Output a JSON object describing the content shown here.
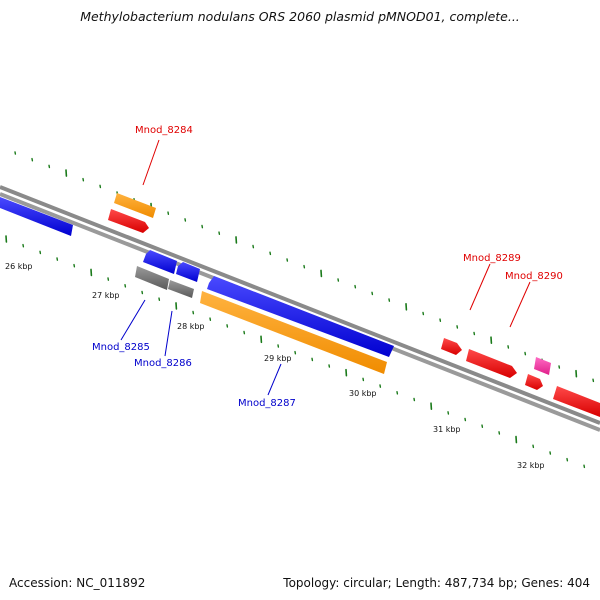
{
  "title": "Methylobacterium nodulans ORS 2060 plasmid pMNOD01, complete...",
  "footer": {
    "accession": "Accession: NC_011892",
    "summary": "Topology: circular; Length: 487,734 bp; Genes: 404"
  },
  "colors": {
    "backbone": "#8c8c8c",
    "tick": "#1a7a1a",
    "forward_gene": "#ff0000",
    "forward_label": "#e00000",
    "reverse_gene": "#0000ee",
    "reverse_label": "#0000cc",
    "orange": "#ff9900",
    "gray": "#777777",
    "pink": "#ff33aa"
  },
  "scale_labels": [
    "26 kbp",
    "27 kbp",
    "28 kbp",
    "29 kbp",
    "30 kbp",
    "31 kbp",
    "32 kbp"
  ],
  "gene_labels": {
    "mnod_8284": "Mnod_8284",
    "mnod_8285": "Mnod_8285",
    "mnod_8286": "Mnod_8286",
    "mnod_8287": "Mnod_8287",
    "mnod_8289": "Mnod_8289",
    "mnod_8290": "Mnod_8290"
  }
}
